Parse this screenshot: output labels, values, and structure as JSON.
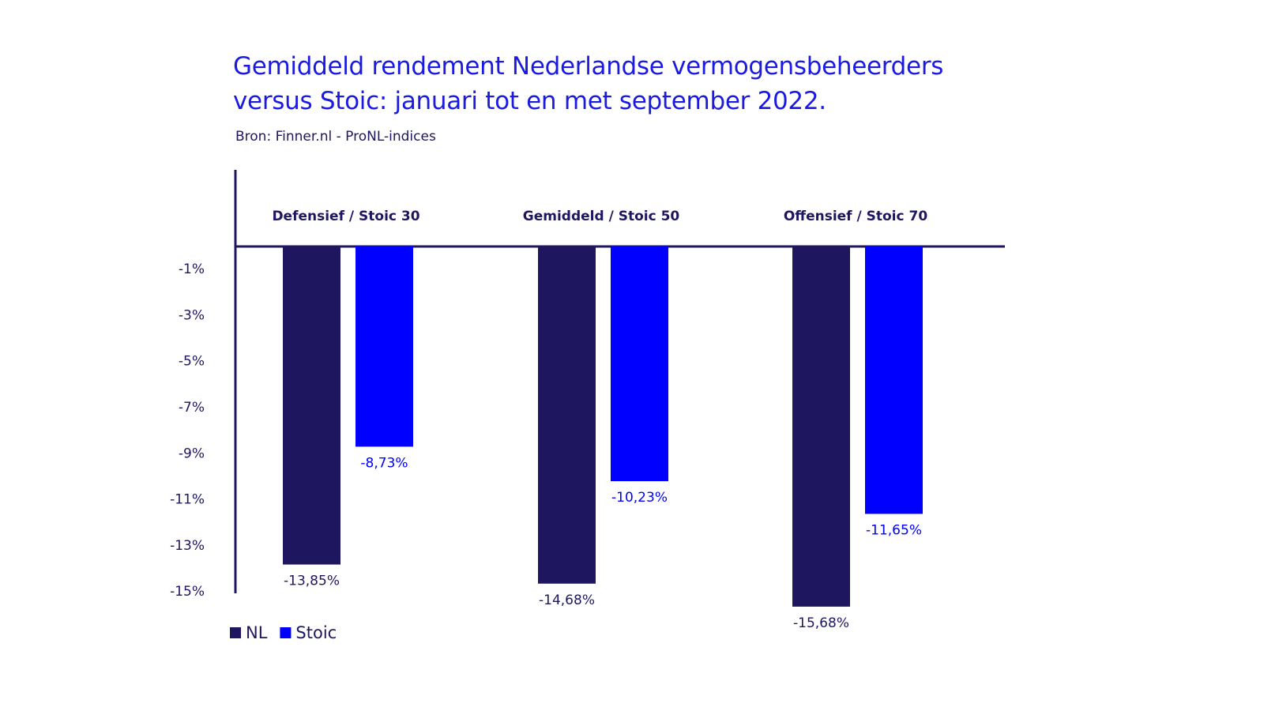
{
  "chart_data": {
    "type": "bar",
    "title": "Gemiddeld rendement Nederlandse vermogensbeheerders versus Stoic: januari tot en met september 2022.",
    "title_lines": [
      "Gemiddeld rendement Nederlandse vermogensbeheerders",
      "versus Stoic: januari tot en met september 2022."
    ],
    "subtitle": "Bron: Finner.nl - ProNL-indices",
    "categories": [
      "Defensief / Stoic 30",
      "Gemiddeld / Stoic 50",
      "Offensief / Stoic 70"
    ],
    "series": [
      {
        "name": "NL",
        "color": "#1e1760",
        "values": [
          -13.85,
          -14.68,
          -15.68
        ],
        "labels": [
          "-13,85%",
          "-14,68%",
          "-15,68%"
        ]
      },
      {
        "name": "Stoic",
        "color": "#0000ff",
        "values": [
          -8.73,
          -10.23,
          -11.65
        ],
        "labels": [
          "-8,73%",
          "-10,23%",
          "-11,65%"
        ]
      }
    ],
    "yticks": [
      -1,
      -3,
      -5,
      -7,
      -9,
      -11,
      -13,
      -15
    ],
    "ytick_labels": [
      "-1%",
      "-3%",
      "-5%",
      "-7%",
      "-9%",
      "-11%",
      "-13%",
      "-15%"
    ],
    "ylim": [
      -15,
      0
    ],
    "grid": false,
    "legend_position": "bottom-left",
    "xlabel": "",
    "ylabel": ""
  },
  "colors": {
    "title": "#1a1ae0",
    "axis": "#1e1760"
  }
}
